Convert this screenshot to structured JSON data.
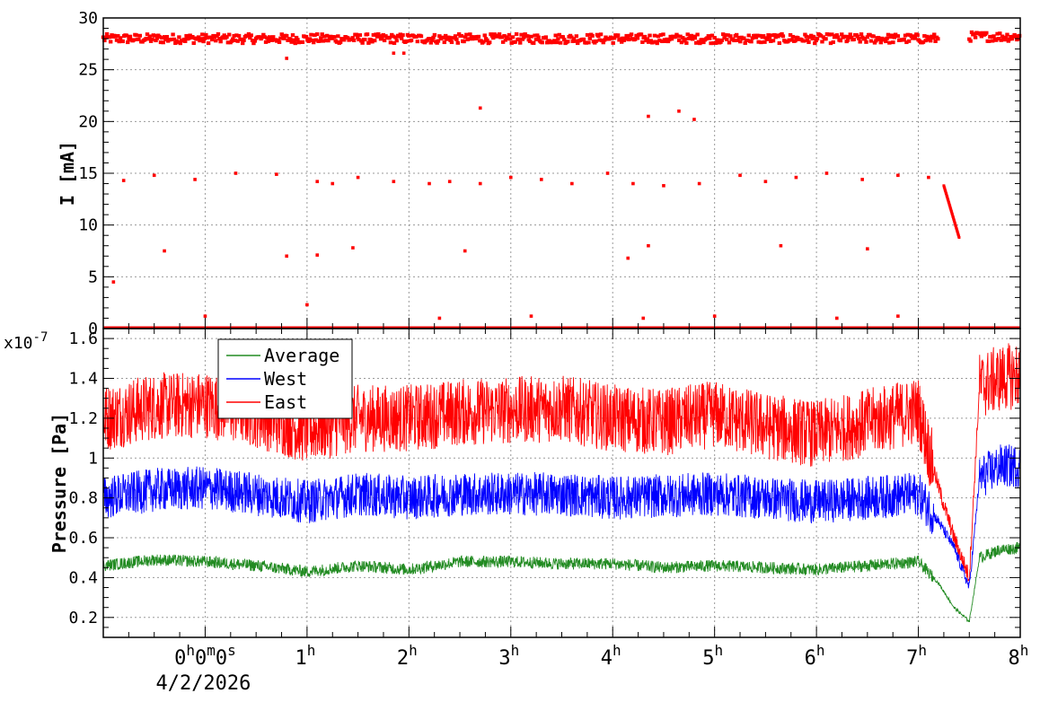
{
  "chart_data": [
    {
      "type": "scatter",
      "name": "beam-current",
      "ylabel": "I [mA]",
      "ylim": [
        0,
        30
      ],
      "yticks": [
        "0",
        "5",
        "10",
        "15",
        "20",
        "25",
        "30"
      ],
      "xlim_hours": [
        -1.0,
        8.0
      ],
      "grid": true,
      "series": [
        {
          "color": "#ff0000",
          "points": [
            {
              "x_h": -1.0,
              "x_end_h": 7.0,
              "y": 28.0,
              "note": "stored beam band"
            },
            {
              "x_h": 7.0,
              "x_end_h": 7.2,
              "y": 28.0
            },
            {
              "x_h": 7.5,
              "x_end_h": 8.0,
              "y": 28.2
            },
            {
              "x_h": 7.25,
              "x_end_h": 7.4,
              "y_start": 13.8,
              "y_end": 8.8,
              "note": "decay"
            },
            {
              "x_h": -0.8,
              "y": 14.3
            },
            {
              "x_h": -0.5,
              "y": 14.8
            },
            {
              "x_h": -0.1,
              "y": 14.4
            },
            {
              "x_h": 0.3,
              "y": 15.0
            },
            {
              "x_h": 0.7,
              "y": 14.9
            },
            {
              "x_h": 1.1,
              "y": 14.2
            },
            {
              "x_h": 1.25,
              "y": 14.0
            },
            {
              "x_h": 1.5,
              "y": 14.6
            },
            {
              "x_h": 1.85,
              "y": 14.2
            },
            {
              "x_h": 2.2,
              "y": 14.0
            },
            {
              "x_h": 2.4,
              "y": 14.2
            },
            {
              "x_h": 2.7,
              "y": 14.0
            },
            {
              "x_h": 3.0,
              "y": 14.6
            },
            {
              "x_h": 3.3,
              "y": 14.4
            },
            {
              "x_h": 3.6,
              "y": 14.0
            },
            {
              "x_h": 3.95,
              "y": 15.0
            },
            {
              "x_h": 4.2,
              "y": 14.0
            },
            {
              "x_h": 4.5,
              "y": 13.8
            },
            {
              "x_h": 4.85,
              "y": 14.0
            },
            {
              "x_h": 5.25,
              "y": 14.8
            },
            {
              "x_h": 5.5,
              "y": 14.2
            },
            {
              "x_h": 5.8,
              "y": 14.6
            },
            {
              "x_h": 6.1,
              "y": 15.0
            },
            {
              "x_h": 6.45,
              "y": 14.4
            },
            {
              "x_h": 6.8,
              "y": 14.8
            },
            {
              "x_h": 7.1,
              "y": 14.6
            },
            {
              "x_h": -0.4,
              "y": 7.5
            },
            {
              "x_h": 0.8,
              "y": 7.0
            },
            {
              "x_h": 1.1,
              "y": 7.1
            },
            {
              "x_h": 1.45,
              "y": 7.8
            },
            {
              "x_h": 2.55,
              "y": 7.5
            },
            {
              "x_h": 4.15,
              "y": 6.8
            },
            {
              "x_h": 4.35,
              "y": 8.0
            },
            {
              "x_h": 5.65,
              "y": 8.0
            },
            {
              "x_h": 6.5,
              "y": 7.7
            },
            {
              "x_h": 2.7,
              "y": 21.3
            },
            {
              "x_h": 4.35,
              "y": 20.5
            },
            {
              "x_h": 4.65,
              "y": 21.0
            },
            {
              "x_h": 4.8,
              "y": 20.2
            },
            {
              "x_h": 0.8,
              "y": 26.1
            },
            {
              "x_h": 1.85,
              "y": 26.6
            },
            {
              "x_h": 1.95,
              "y": 26.6
            },
            {
              "x_h": -0.9,
              "y": 4.5
            },
            {
              "x_h": 1.0,
              "y": 2.3
            },
            {
              "x_h": 0.0,
              "y": 1.2
            },
            {
              "x_h": 2.3,
              "y": 1.0
            },
            {
              "x_h": 3.2,
              "y": 1.2
            },
            {
              "x_h": 4.3,
              "y": 1.0
            },
            {
              "x_h": 5.0,
              "y": 1.2
            },
            {
              "x_h": 6.2,
              "y": 1.0
            },
            {
              "x_h": 6.8,
              "y": 1.2
            }
          ]
        }
      ]
    },
    {
      "type": "line",
      "name": "vacuum-pressure",
      "ylabel": "Pressure [Pa]",
      "y_multiplier_label": "x10",
      "y_multiplier_exp": "-7",
      "ylim": [
        0.1,
        1.65
      ],
      "yticks": [
        "0.2",
        "0.4",
        "0.6",
        "0.8",
        "1",
        "1.2",
        "1.4",
        "1.6"
      ],
      "xlim_hours": [
        -1.0,
        8.0
      ],
      "grid": true,
      "legend_position": "top-left",
      "series": [
        {
          "name": "Average",
          "color": "#228b22",
          "x_h": [
            -1.0,
            -0.5,
            0.0,
            0.5,
            1.0,
            1.5,
            2.0,
            2.5,
            3.0,
            3.5,
            4.0,
            4.5,
            5.0,
            5.5,
            6.0,
            6.5,
            7.0,
            7.2,
            7.35,
            7.5,
            7.6,
            7.8,
            8.0
          ],
          "y": [
            0.46,
            0.49,
            0.48,
            0.46,
            0.43,
            0.46,
            0.44,
            0.48,
            0.48,
            0.47,
            0.47,
            0.45,
            0.46,
            0.45,
            0.44,
            0.46,
            0.48,
            0.37,
            0.25,
            0.18,
            0.5,
            0.54,
            0.55
          ]
        },
        {
          "name": "West",
          "color": "#0000ff",
          "x_h": [
            -1.0,
            -0.5,
            0.0,
            0.5,
            1.0,
            1.5,
            2.0,
            2.5,
            3.0,
            3.5,
            4.0,
            4.5,
            5.0,
            5.5,
            6.0,
            6.5,
            7.0,
            7.2,
            7.35,
            7.5,
            7.6,
            7.8,
            8.0
          ],
          "y": [
            0.8,
            0.84,
            0.85,
            0.82,
            0.78,
            0.82,
            0.8,
            0.82,
            0.82,
            0.82,
            0.8,
            0.81,
            0.82,
            0.8,
            0.78,
            0.8,
            0.82,
            0.68,
            0.55,
            0.35,
            0.9,
            0.96,
            0.96
          ]
        },
        {
          "name": "East",
          "color": "#ff0000",
          "x_h": [
            -1.0,
            -0.5,
            0.0,
            0.5,
            1.0,
            1.5,
            2.0,
            2.5,
            3.0,
            3.5,
            4.0,
            4.5,
            5.0,
            5.5,
            6.0,
            6.5,
            7.0,
            7.2,
            7.35,
            7.5,
            7.6,
            7.8,
            8.0
          ],
          "y": [
            1.2,
            1.26,
            1.27,
            1.22,
            1.14,
            1.2,
            1.2,
            1.23,
            1.24,
            1.25,
            1.2,
            1.18,
            1.22,
            1.16,
            1.12,
            1.18,
            1.24,
            0.85,
            0.6,
            0.4,
            1.36,
            1.4,
            1.42
          ]
        }
      ]
    }
  ],
  "x_axis": {
    "tick_hours": [
      1,
      2,
      3,
      4,
      5,
      6,
      7,
      8
    ],
    "tick_base": "",
    "tick_suffix": "h",
    "origin_label_parts": [
      "0",
      "h",
      "0",
      "m",
      "0",
      "s"
    ],
    "date_label": "4/2/2026"
  }
}
